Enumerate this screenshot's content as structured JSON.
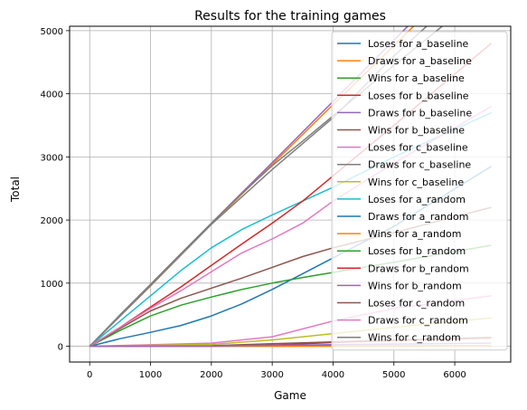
{
  "chart_data": {
    "type": "line",
    "title": "Results for the training games",
    "xlabel": "Game",
    "ylabel": "Total",
    "xlim": [
      -330,
      6920
    ],
    "ylim": [
      -250,
      5070
    ],
    "xticks": [
      0,
      1000,
      2000,
      3000,
      4000,
      5000,
      6000
    ],
    "yticks": [
      0,
      1000,
      2000,
      3000,
      4000,
      5000
    ],
    "xtick_labels": [
      "0",
      "1000",
      "2000",
      "3000",
      "4000",
      "5000",
      "6000"
    ],
    "ytick_labels": [
      "0",
      "1000",
      "2000",
      "3000",
      "4000",
      "5000"
    ],
    "grid": true,
    "legend_position": "upper right",
    "series": [
      {
        "name": "Loses for a_baseline",
        "color": "#1f77b4",
        "x": [
          0,
          6600
        ],
        "y": [
          0,
          8
        ]
      },
      {
        "name": "Draws for a_baseline",
        "color": "#ff7f0e",
        "x": [
          0,
          1000,
          2000,
          3000,
          4000,
          5000,
          6600
        ],
        "y": [
          0,
          955,
          1935,
          2880,
          3830,
          4760,
          6300
        ]
      },
      {
        "name": "Wins for a_baseline",
        "color": "#2ca02c",
        "x": [
          0,
          6600
        ],
        "y": [
          0,
          5
        ]
      },
      {
        "name": "Loses for b_baseline",
        "color": "#d62728",
        "x": [
          0,
          2000,
          3000,
          4000,
          5000,
          6600
        ],
        "y": [
          0,
          0,
          20,
          60,
          90,
          130
        ]
      },
      {
        "name": "Draws for b_baseline",
        "color": "#9467bd",
        "x": [
          0,
          1000,
          2000,
          3000,
          4000,
          5000,
          6600
        ],
        "y": [
          0,
          965,
          1950,
          2910,
          3880,
          4850,
          6400
        ]
      },
      {
        "name": "Wins for b_baseline",
        "color": "#8c564b",
        "x": [
          0,
          2000,
          3000,
          4000,
          5000,
          6600
        ],
        "y": [
          0,
          10,
          40,
          70,
          100,
          140
        ]
      },
      {
        "name": "Loses for c_baseline",
        "color": "#e377c2",
        "x": [
          0,
          2000,
          3000,
          4000,
          5000,
          6600
        ],
        "y": [
          0,
          50,
          150,
          400,
          600,
          800
        ]
      },
      {
        "name": "Draws for c_baseline",
        "color": "#7f7f7f",
        "x": [
          0,
          1000,
          2000,
          3000,
          4000,
          5000,
          6600
        ],
        "y": [
          0,
          960,
          1930,
          2800,
          3620,
          4600,
          6000
        ]
      },
      {
        "name": "Wins for c_baseline",
        "color": "#bcbd22",
        "x": [
          0,
          2000,
          3000,
          4000,
          5000,
          6600
        ],
        "y": [
          0,
          30,
          100,
          200,
          300,
          450
        ]
      },
      {
        "name": "Loses for a_random",
        "color": "#17becf",
        "x": [
          0,
          500,
          1000,
          1500,
          2000,
          2500,
          3000,
          3500,
          4000,
          5000,
          6600
        ],
        "y": [
          0,
          400,
          800,
          1200,
          1560,
          1850,
          2080,
          2300,
          2520,
          3000,
          3700
        ]
      },
      {
        "name": "Draws for a_random",
        "color": "#1f77b4",
        "x": [
          0,
          500,
          1000,
          1500,
          2000,
          2500,
          3000,
          3500,
          4000,
          5000,
          6600
        ],
        "y": [
          0,
          120,
          220,
          330,
          480,
          670,
          900,
          1150,
          1400,
          1900,
          2850
        ]
      },
      {
        "name": "Wins for a_random",
        "color": "#ff7f0e",
        "x": [
          0,
          6600
        ],
        "y": [
          0,
          3
        ]
      },
      {
        "name": "Loses for b_random",
        "color": "#2ca02c",
        "x": [
          0,
          500,
          1000,
          1500,
          2000,
          2500,
          3000,
          3500,
          4000,
          5000,
          6600
        ],
        "y": [
          0,
          250,
          480,
          650,
          780,
          900,
          1000,
          1090,
          1170,
          1330,
          1600
        ]
      },
      {
        "name": "Draws for b_random",
        "color": "#d62728",
        "x": [
          0,
          500,
          1000,
          1500,
          2000,
          2500,
          3000,
          3500,
          4000,
          5000,
          6600
        ],
        "y": [
          0,
          300,
          620,
          940,
          1280,
          1620,
          1950,
          2300,
          2700,
          3500,
          4800
        ]
      },
      {
        "name": "Wins for b_random",
        "color": "#9467bd",
        "x": [
          0,
          2000,
          3000,
          4000,
          5000,
          6600
        ],
        "y": [
          0,
          5,
          15,
          25,
          35,
          50
        ]
      },
      {
        "name": "Loses for c_random",
        "color": "#8c564b",
        "x": [
          0,
          500,
          1000,
          1500,
          2000,
          2500,
          3000,
          3500,
          4000,
          5000,
          6600
        ],
        "y": [
          0,
          280,
          560,
          760,
          920,
          1080,
          1250,
          1420,
          1560,
          1800,
          2200
        ]
      },
      {
        "name": "Draws for c_random",
        "color": "#e377c2",
        "x": [
          0,
          500,
          1000,
          1500,
          2000,
          2500,
          3000,
          3500,
          4000,
          5000,
          6600
        ],
        "y": [
          0,
          300,
          600,
          880,
          1180,
          1480,
          1700,
          1950,
          2300,
          2900,
          3800
        ]
      },
      {
        "name": "Wins for c_random",
        "color": "#7f7f7f",
        "x": [
          0,
          500,
          1000,
          1500,
          2000,
          2500,
          3000,
          3500,
          4000,
          5000,
          6600
        ],
        "y": [
          0,
          500,
          980,
          1470,
          1950,
          2420,
          2860,
          3250,
          3650,
          4450,
          5700
        ]
      }
    ]
  }
}
